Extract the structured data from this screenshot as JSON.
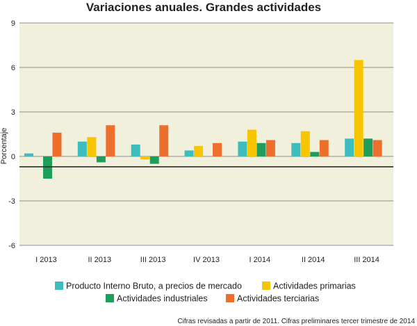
{
  "chart_data": {
    "type": "bar",
    "title": "Variaciones anuales. Grandes actividades",
    "ylabel": "Porcentaje",
    "xlabel": "",
    "ylim": [
      -6,
      9
    ],
    "yticks": [
      9,
      6,
      3,
      0,
      -3,
      -6
    ],
    "grid": true,
    "legend_position": "bottom",
    "categories": [
      "I 2013",
      "II 2013",
      "III 2013",
      "IV 2013",
      "I 2014",
      "II 2014",
      "III 2014"
    ],
    "series": [
      {
        "name": "Producto Interno Bruto, a precios de mercado",
        "color": "#3dbdbd",
        "values": [
          0.2,
          1.0,
          0.8,
          0.4,
          1.0,
          0.9,
          1.2
        ]
      },
      {
        "name": "Actividades primarias",
        "color": "#f7c600",
        "values": [
          null,
          1.3,
          -0.2,
          0.7,
          1.8,
          1.7,
          6.5
        ]
      },
      {
        "name": "Actividades industriales",
        "color": "#1e9e5b",
        "values": [
          -1.5,
          -0.4,
          -0.5,
          null,
          0.9,
          0.3,
          1.2
        ]
      },
      {
        "name": "Actividades terciarias",
        "color": "#ee6f2c",
        "values": [
          1.6,
          2.1,
          2.1,
          0.9,
          1.1,
          1.1,
          1.1
        ]
      }
    ],
    "baseline_value": -0.7,
    "footnote": "Cifras revisadas a partir de 2011. Cifras preliminares tercer trimestre de 2014"
  }
}
